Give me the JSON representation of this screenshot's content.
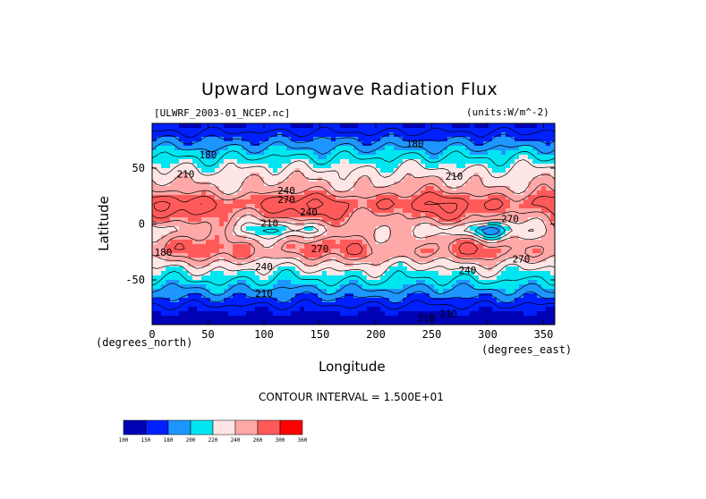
{
  "chart_data": {
    "type": "contour",
    "title": "Upward Longwave Radiation Flux",
    "source_label": "[ULWRF_2003-01_NCEP.nc]",
    "units_label": "(units:W/m^-2)",
    "xlabel": "Longitude",
    "ylabel": "Latitude",
    "x_unit_label": "(degrees_east)",
    "y_unit_label": "(degrees_north)",
    "xlim": [
      0,
      360
    ],
    "ylim": [
      -90,
      90
    ],
    "x_ticks": [
      0,
      50,
      100,
      150,
      200,
      250,
      300,
      350
    ],
    "y_ticks": [
      50,
      0,
      -50
    ],
    "contour_interval_text": "CONTOUR INTERVAL = 1.500E+01",
    "contour_labels": [
      {
        "text": "180",
        "x": 50,
        "y": 62
      },
      {
        "text": "180",
        "x": 235,
        "y": 72
      },
      {
        "text": "210",
        "x": 30,
        "y": 45
      },
      {
        "text": "210",
        "x": 270,
        "y": 43
      },
      {
        "text": "240",
        "x": 120,
        "y": 30
      },
      {
        "text": "270",
        "x": 120,
        "y": 22
      },
      {
        "text": "240",
        "x": 140,
        "y": 11
      },
      {
        "text": "210",
        "x": 105,
        "y": 1
      },
      {
        "text": "270",
        "x": 320,
        "y": 5
      },
      {
        "text": "270",
        "x": 150,
        "y": -22
      },
      {
        "text": "240",
        "x": 100,
        "y": -38
      },
      {
        "text": "240",
        "x": 282,
        "y": -41
      },
      {
        "text": "270",
        "x": 330,
        "y": -31
      },
      {
        "text": "210",
        "x": 100,
        "y": -62
      },
      {
        "text": "210",
        "x": 245,
        "y": -84
      },
      {
        "text": "210",
        "x": 265,
        "y": -80
      },
      {
        "text": "180",
        "x": 10,
        "y": -25
      }
    ],
    "colorbar": {
      "levels": [
        100,
        150,
        180,
        200,
        220,
        240,
        260,
        300,
        360
      ],
      "tick_labels": [
        "100",
        "150",
        "180",
        "200",
        "220",
        "240",
        "260",
        "300",
        "360"
      ],
      "colors": [
        "#0000b4",
        "#0020ff",
        "#1e96ff",
        "#00e6f0",
        "#ffe6e6",
        "#ffa8a8",
        "#ff5a5a",
        "#ff0000"
      ]
    }
  }
}
